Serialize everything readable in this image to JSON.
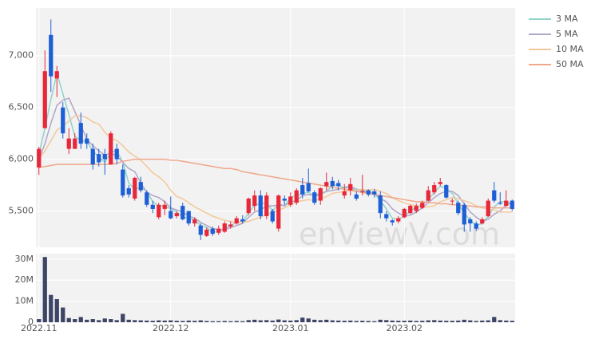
{
  "chart_data": {
    "type": "candlestick",
    "categories": [
      "2022.11",
      null,
      null,
      null,
      null,
      null,
      null,
      null,
      null,
      null,
      null,
      null,
      null,
      null,
      null,
      null,
      null,
      null,
      null,
      null,
      null,
      null,
      "2022.12",
      null,
      null,
      null,
      null,
      null,
      null,
      null,
      null,
      null,
      null,
      null,
      null,
      null,
      null,
      null,
      null,
      null,
      null,
      null,
      "2023.01",
      null,
      null,
      null,
      null,
      null,
      null,
      null,
      null,
      null,
      null,
      null,
      null,
      null,
      null,
      null,
      null,
      null,
      null,
      "2023.02",
      null,
      null,
      null,
      null,
      null,
      null,
      null,
      null,
      null,
      null,
      null,
      null,
      null,
      null,
      null,
      null,
      null,
      null
    ],
    "open": [
      5920,
      6300,
      7200,
      6780,
      6500,
      6100,
      6100,
      6350,
      6200,
      6100,
      6050,
      6050,
      5950,
      6100,
      5900,
      5720,
      5620,
      5780,
      5680,
      5560,
      5440,
      5520,
      5500,
      5450,
      5550,
      5500,
      5380,
      5360,
      5260,
      5330,
      5290,
      5300,
      5350,
      5380,
      5420,
      5480,
      5550,
      5650,
      5450,
      5500,
      5330,
      5620,
      5560,
      5580,
      5750,
      5770,
      5680,
      5600,
      5740,
      5790,
      5770,
      5650,
      5700,
      5660,
      5680,
      5700,
      5690,
      5650,
      5470,
      5410,
      5400,
      5440,
      5480,
      5500,
      5530,
      5600,
      5680,
      5760,
      5750,
      5600,
      5580,
      5560,
      5420,
      5380,
      5380,
      5450,
      5700,
      5580,
      5550,
      5600
    ],
    "high": [
      6120,
      7050,
      7350,
      6900,
      6550,
      6300,
      6250,
      6450,
      6250,
      6150,
      6100,
      6100,
      6270,
      6150,
      5950,
      5750,
      5830,
      5830,
      5700,
      5600,
      5580,
      5600,
      5640,
      5500,
      5580,
      5500,
      5440,
      5380,
      5340,
      5350,
      5360,
      5400,
      5400,
      5450,
      5460,
      5630,
      5700,
      5700,
      5680,
      5520,
      5660,
      5650,
      5680,
      5720,
      5820,
      5910,
      5700,
      5730,
      5870,
      5830,
      5800,
      5760,
      5820,
      5690,
      5850,
      5710,
      5710,
      5690,
      5500,
      5420,
      5450,
      5530,
      5560,
      5570,
      5600,
      5740,
      5780,
      5820,
      5760,
      5620,
      5600,
      5580,
      5440,
      5400,
      5440,
      5620,
      5780,
      5680,
      5700,
      5610
    ],
    "low": [
      5850,
      6300,
      6650,
      6600,
      6200,
      6050,
      6100,
      6100,
      6100,
      5900,
      5930,
      5850,
      5950,
      5950,
      5630,
      5630,
      5600,
      5680,
      5540,
      5480,
      5420,
      5460,
      5420,
      5430,
      5410,
      5360,
      5350,
      5220,
      5250,
      5260,
      5270,
      5290,
      5330,
      5370,
      5380,
      5460,
      5500,
      5420,
      5420,
      5380,
      5300,
      5560,
      5540,
      5560,
      5620,
      5680,
      5560,
      5560,
      5700,
      5710,
      5700,
      5620,
      5650,
      5600,
      5650,
      5640,
      5630,
      5430,
      5400,
      5360,
      5380,
      5430,
      5470,
      5480,
      5520,
      5590,
      5660,
      5740,
      5620,
      5560,
      5460,
      5300,
      5300,
      5310,
      5370,
      5440,
      5580,
      5560,
      5540,
      5500
    ],
    "close": [
      6100,
      6850,
      6800,
      6850,
      6250,
      6200,
      6200,
      6150,
      6150,
      5950,
      5970,
      6000,
      6250,
      6000,
      5650,
      5660,
      5820,
      5700,
      5560,
      5520,
      5560,
      5560,
      5430,
      5480,
      5420,
      5380,
      5420,
      5270,
      5320,
      5280,
      5330,
      5380,
      5370,
      5430,
      5400,
      5620,
      5650,
      5450,
      5650,
      5400,
      5650,
      5600,
      5640,
      5700,
      5660,
      5690,
      5580,
      5720,
      5780,
      5740,
      5740,
      5690,
      5760,
      5620,
      5690,
      5660,
      5660,
      5480,
      5430,
      5390,
      5430,
      5520,
      5550,
      5550,
      5580,
      5700,
      5750,
      5780,
      5630,
      5600,
      5480,
      5370,
      5380,
      5330,
      5420,
      5600,
      5600,
      5570,
      5600,
      5520
    ],
    "up_color": "#e8283a",
    "down_color": "#1f5fd6",
    "series": [
      {
        "name": "3 MA",
        "color": "#8fd3c8",
        "values": [
          6050,
          6300,
          6580,
          6830,
          6630,
          6430,
          6220,
          6180,
          6170,
          6080,
          6020,
          5970,
          6070,
          6080,
          5970,
          5770,
          5710,
          5730,
          5690,
          5590,
          5550,
          5550,
          5520,
          5490,
          5440,
          5430,
          5410,
          5360,
          5340,
          5290,
          5310,
          5330,
          5360,
          5390,
          5400,
          5480,
          5560,
          5570,
          5580,
          5500,
          5570,
          5550,
          5630,
          5650,
          5670,
          5680,
          5640,
          5660,
          5690,
          5750,
          5750,
          5720,
          5730,
          5690,
          5690,
          5660,
          5670,
          5600,
          5520,
          5430,
          5420,
          5450,
          5500,
          5540,
          5560,
          5610,
          5680,
          5740,
          5720,
          5670,
          5570,
          5480,
          5410,
          5360,
          5380,
          5450,
          5540,
          5590,
          5590,
          5560
        ]
      },
      {
        "name": "5 MA",
        "color": "#b0a6c8",
        "values": [
          6000,
          6150,
          6350,
          6520,
          6570,
          6590,
          6460,
          6330,
          6190,
          6130,
          6080,
          6040,
          6060,
          6030,
          5970,
          5910,
          5880,
          5770,
          5680,
          5650,
          5630,
          5590,
          5530,
          5510,
          5490,
          5450,
          5430,
          5390,
          5360,
          5330,
          5320,
          5320,
          5340,
          5360,
          5380,
          5440,
          5490,
          5510,
          5550,
          5550,
          5560,
          5550,
          5590,
          5600,
          5650,
          5660,
          5650,
          5670,
          5690,
          5700,
          5710,
          5730,
          5740,
          5710,
          5700,
          5680,
          5680,
          5620,
          5590,
          5520,
          5480,
          5450,
          5460,
          5490,
          5530,
          5580,
          5630,
          5670,
          5690,
          5690,
          5650,
          5570,
          5490,
          5440,
          5400,
          5420,
          5470,
          5500,
          5560,
          5580
        ]
      },
      {
        "name": "10 MA",
        "color": "#f2c89a",
        "values": [
          6000,
          6080,
          6180,
          6280,
          6320,
          6370,
          6420,
          6420,
          6400,
          6360,
          6340,
          6260,
          6200,
          6180,
          6130,
          6070,
          6030,
          5990,
          5930,
          5870,
          5830,
          5780,
          5700,
          5640,
          5620,
          5580,
          5540,
          5510,
          5480,
          5450,
          5430,
          5410,
          5400,
          5390,
          5390,
          5400,
          5420,
          5440,
          5470,
          5480,
          5510,
          5530,
          5560,
          5590,
          5600,
          5610,
          5600,
          5620,
          5640,
          5670,
          5680,
          5690,
          5700,
          5700,
          5710,
          5700,
          5710,
          5690,
          5670,
          5630,
          5600,
          5580,
          5560,
          5550,
          5540,
          5540,
          5550,
          5590,
          5610,
          5630,
          5620,
          5600,
          5580,
          5550,
          5530,
          5520,
          5510,
          5490,
          5490,
          5490
        ]
      },
      {
        "name": "50 MA",
        "color": "#f0a78a",
        "values": [
          5920,
          5930,
          5940,
          5950,
          5950,
          5950,
          5950,
          5950,
          5950,
          5950,
          5950,
          5950,
          5950,
          5960,
          5980,
          5990,
          6000,
          6000,
          6000,
          6000,
          6000,
          6000,
          5990,
          5990,
          5980,
          5970,
          5960,
          5950,
          5940,
          5930,
          5920,
          5910,
          5910,
          5900,
          5880,
          5870,
          5860,
          5850,
          5840,
          5830,
          5820,
          5810,
          5800,
          5790,
          5780,
          5770,
          5760,
          5750,
          5740,
          5730,
          5720,
          5710,
          5700,
          5690,
          5680,
          5670,
          5660,
          5650,
          5640,
          5630,
          5620,
          5610,
          5600,
          5590,
          5590,
          5580,
          5580,
          5570,
          5570,
          5560,
          5560,
          5550,
          5550,
          5540,
          5540,
          5540,
          5530,
          5530,
          5530,
          5530
        ]
      }
    ],
    "ylim": [
      5150,
      7460
    ],
    "yticks": [
      {
        "value": 5500,
        "label": "5,500"
      },
      {
        "value": 6000,
        "label": "6,000"
      },
      {
        "value": 6500,
        "label": "6,500"
      },
      {
        "value": 7000,
        "label": "7,000"
      }
    ],
    "grid": true,
    "legend": "right",
    "watermark": "enViewV.com",
    "volume": {
      "color": "#3d4466",
      "values": [
        1500000,
        31000000,
        13000000,
        11000000,
        7000000,
        2000000,
        1500000,
        2500000,
        1200000,
        1500000,
        1000000,
        1800000,
        1500000,
        1000000,
        4000000,
        1200000,
        1000000,
        900000,
        800000,
        700000,
        900000,
        800000,
        900000,
        700000,
        600000,
        800000,
        700000,
        900000,
        600000,
        500000,
        500000,
        600000,
        500000,
        600000,
        500000,
        1000000,
        1200000,
        900000,
        1000000,
        800000,
        1300000,
        900000,
        800000,
        1000000,
        2200000,
        1800000,
        1200000,
        1000000,
        1200000,
        900000,
        800000,
        700000,
        800000,
        600000,
        700000,
        600000,
        500000,
        1200000,
        1000000,
        800000,
        700000,
        700000,
        800000,
        600000,
        700000,
        900000,
        1000000,
        800000,
        700000,
        700000,
        800000,
        1200000,
        900000,
        600000,
        800000,
        900000,
        2500000,
        1000000,
        800000,
        700000
      ],
      "ylim": [
        0,
        32600000
      ],
      "yticks": [
        0,
        {
          "value": 10000000,
          "label": "10M"
        },
        {
          "value": 20000000,
          "label": "20M"
        },
        {
          "value": 30000000,
          "label": "30M"
        }
      ]
    }
  }
}
